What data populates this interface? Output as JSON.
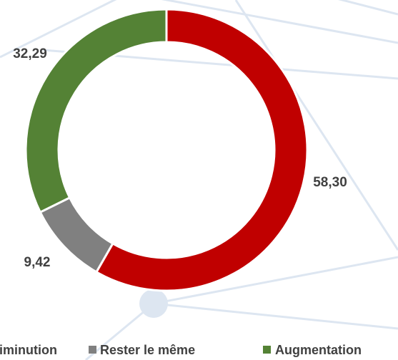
{
  "chart_data": {
    "type": "donut",
    "categories": [
      "Diminution",
      "Rester le même",
      "Augmentation"
    ],
    "values": [
      58.3,
      9.42,
      32.29
    ],
    "value_labels": [
      "58,30",
      "9,42",
      "32,29"
    ],
    "colors": [
      "#c00000",
      "#808080",
      "#548235"
    ],
    "legend": "bottom"
  }
}
